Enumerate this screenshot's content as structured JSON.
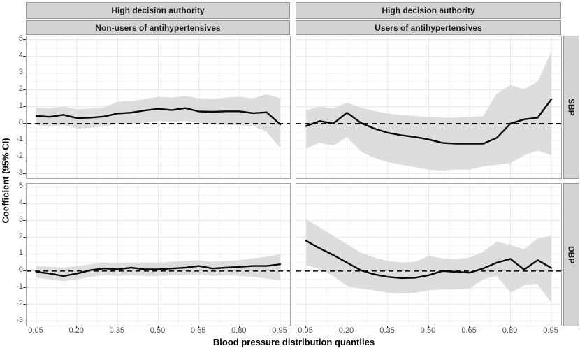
{
  "figure": {
    "colors": {
      "strip_bg": "#d3d3d3",
      "strip_border": "#999999",
      "panel_border": "#a6a6a6",
      "grid_major": "#e6e6e6",
      "grid_minor": "#f2f2f2",
      "ribbon": "#d9d9d9",
      "line": "#0a0a0a",
      "reference_line": "#111111",
      "tick_label": "#4d4d4d"
    }
  },
  "chart_data": {
    "type": "line",
    "title": "",
    "xlabel": "Blood pressure distribution quantiles",
    "ylabel": "Coefficient (95% CI)",
    "legend": "none",
    "grid": "on",
    "x": [
      0.05,
      0.1,
      0.15,
      0.2,
      0.25,
      0.3,
      0.35,
      0.4,
      0.45,
      0.5,
      0.55,
      0.6,
      0.65,
      0.7,
      0.75,
      0.8,
      0.85,
      0.9,
      0.95
    ],
    "xticks": {
      "values": [
        0.05,
        0.2,
        0.35,
        0.5,
        0.65,
        0.8,
        0.95
      ],
      "labels": [
        "0.05",
        "0.20",
        "0.35",
        "0.50",
        "0.65",
        "0.80",
        "0.95"
      ]
    },
    "yticks": {
      "values": [
        5,
        4,
        3,
        2,
        1,
        0,
        -1,
        -2,
        -3
      ],
      "labels": [
        "5",
        "4",
        "3",
        "2",
        "1",
        "0",
        "-1",
        "-2",
        "-3"
      ]
    },
    "ylim": [
      -3.26,
      5.2
    ],
    "xlim": [
      0.05,
      0.95
    ],
    "reference_line_y": 0,
    "col_facets": [
      {
        "title": "High decision authority",
        "subtitle": "Non-users of antihypertensives"
      },
      {
        "title": "High decision authority",
        "subtitle": "Users of antihypertensives"
      }
    ],
    "row_facets": [
      "SBP",
      "DBP"
    ],
    "panels": [
      {
        "row": "SBP",
        "col": "Non-users of antihypertensives",
        "estimate": [
          0.45,
          0.4,
          0.52,
          0.32,
          0.35,
          0.42,
          0.6,
          0.65,
          0.78,
          0.88,
          0.8,
          0.92,
          0.72,
          0.7,
          0.73,
          0.73,
          0.62,
          0.67,
          -0.05
        ],
        "ci_upper": [
          0.95,
          0.9,
          1.0,
          0.85,
          0.9,
          0.95,
          1.3,
          1.35,
          1.45,
          1.6,
          1.55,
          1.65,
          1.5,
          1.45,
          1.55,
          1.6,
          1.5,
          1.75,
          1.5
        ],
        "ci_lower": [
          -0.1,
          -0.2,
          -0.1,
          -0.3,
          -0.25,
          -0.2,
          0.0,
          0.0,
          0.05,
          0.15,
          0.1,
          0.15,
          0.05,
          -0.05,
          -0.1,
          -0.1,
          -0.15,
          -0.5,
          -1.45
        ]
      },
      {
        "row": "SBP",
        "col": "Users of antihypertensives",
        "estimate": [
          -0.15,
          0.15,
          0.0,
          0.65,
          0.05,
          -0.3,
          -0.55,
          -0.7,
          -0.8,
          -0.95,
          -1.15,
          -1.2,
          -1.2,
          -1.2,
          -0.85,
          0.0,
          0.25,
          0.35,
          1.45
        ],
        "ci_upper": [
          0.8,
          1.0,
          0.9,
          1.25,
          0.95,
          0.75,
          0.6,
          0.5,
          0.45,
          0.4,
          0.35,
          0.35,
          0.4,
          0.45,
          1.8,
          2.3,
          2.05,
          2.5,
          4.3
        ],
        "ci_lower": [
          -1.5,
          -1.15,
          -1.3,
          -0.8,
          -1.65,
          -2.05,
          -2.3,
          -2.45,
          -2.6,
          -2.75,
          -2.8,
          -2.75,
          -2.75,
          -2.55,
          -2.45,
          -2.35,
          -1.9,
          -1.6,
          -1.9
        ]
      },
      {
        "row": "DBP",
        "col": "Non-users of antihypertensives",
        "estimate": [
          -0.05,
          -0.15,
          -0.3,
          -0.15,
          0.05,
          0.15,
          0.1,
          0.2,
          0.1,
          0.1,
          0.15,
          0.2,
          0.3,
          0.15,
          0.2,
          0.25,
          0.3,
          0.3,
          0.4
        ],
        "ci_upper": [
          0.3,
          0.25,
          0.2,
          0.3,
          0.4,
          0.5,
          0.45,
          0.5,
          0.5,
          0.5,
          0.55,
          0.6,
          0.65,
          0.55,
          0.6,
          0.65,
          0.75,
          0.85,
          1.0
        ],
        "ci_lower": [
          -0.4,
          -0.5,
          -0.6,
          -0.5,
          -0.35,
          -0.25,
          -0.3,
          -0.25,
          -0.3,
          -0.3,
          -0.25,
          -0.25,
          -0.2,
          -0.3,
          -0.25,
          -0.3,
          -0.35,
          -0.45,
          -0.55
        ]
      },
      {
        "row": "DBP",
        "col": "Users of antihypertensives",
        "estimate": [
          1.8,
          1.35,
          0.95,
          0.5,
          0.05,
          -0.2,
          -0.35,
          -0.42,
          -0.4,
          -0.25,
          0.0,
          -0.05,
          -0.1,
          0.15,
          0.5,
          0.72,
          0.08,
          0.65,
          0.18
        ],
        "ci_upper": [
          3.1,
          2.6,
          2.1,
          1.6,
          1.1,
          0.8,
          0.6,
          0.5,
          0.55,
          0.9,
          0.75,
          0.7,
          0.8,
          1.15,
          1.75,
          1.55,
          1.3,
          1.95,
          2.1
        ],
        "ci_lower": [
          0.35,
          0.1,
          -0.3,
          -0.9,
          -1.05,
          -1.15,
          -1.3,
          -1.35,
          -1.3,
          -1.15,
          -1.1,
          -1.1,
          -1.05,
          -0.5,
          -0.3,
          -1.3,
          -0.85,
          -0.8,
          -1.9
        ]
      }
    ]
  }
}
